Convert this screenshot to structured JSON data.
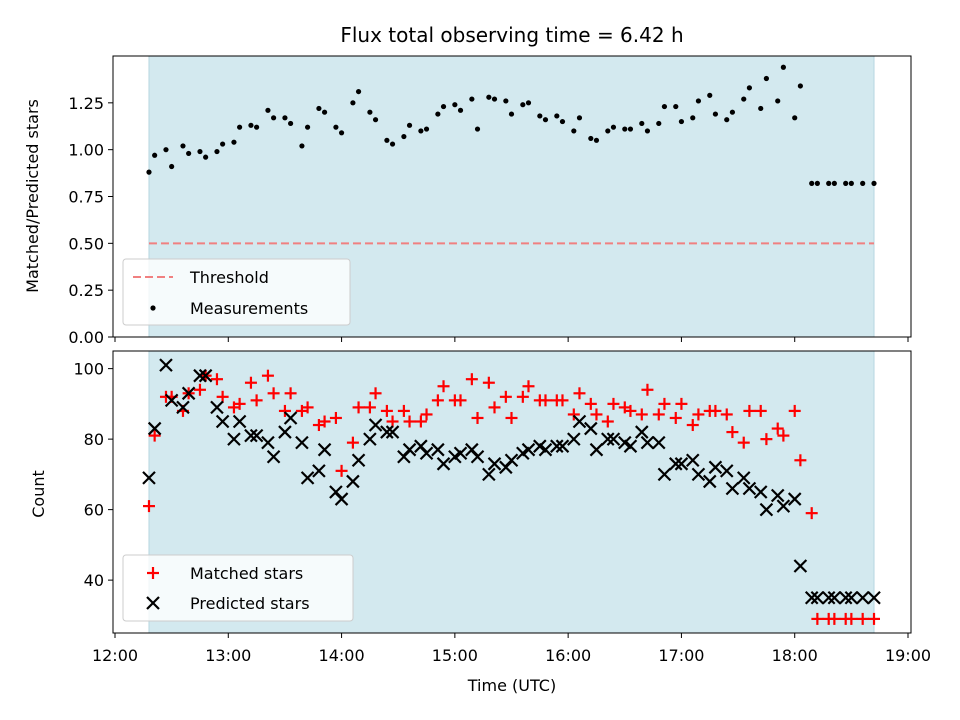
{
  "chart_data": [
    {
      "type": "scatter",
      "title": "Flux total observing time = 6.42 h",
      "xlabel": "",
      "ylabel": "Matched/Predicted stars",
      "xlim": [
        "12:00",
        "19:00"
      ],
      "ylim": [
        0.0,
        1.5
      ],
      "yticks": [
        "0.00",
        "0.25",
        "0.50",
        "0.75",
        "1.00",
        "1.25"
      ],
      "span": {
        "start": "12:18",
        "end": "18:42",
        "color": "#d3e9ef"
      },
      "threshold": {
        "label": "Threshold",
        "value": 0.5,
        "color": "#f08080"
      },
      "legend_position": "lower-left",
      "series": [
        {
          "name": "Measurements",
          "marker": "dot",
          "color": "#000000",
          "x": [
            "12:18",
            "12:21",
            "12:27",
            "12:30",
            "12:36",
            "12:39",
            "12:45",
            "12:48",
            "12:54",
            "12:57",
            "13:03",
            "13:06",
            "13:12",
            "13:15",
            "13:21",
            "13:24",
            "13:30",
            "13:33",
            "13:39",
            "13:42",
            "13:48",
            "13:51",
            "13:57",
            "14:00",
            "14:06",
            "14:09",
            "14:15",
            "14:18",
            "14:24",
            "14:27",
            "14:33",
            "14:36",
            "14:42",
            "14:45",
            "14:51",
            "14:54",
            "15:00",
            "15:03",
            "15:09",
            "15:12",
            "15:18",
            "15:21",
            "15:27",
            "15:30",
            "15:36",
            "15:39",
            "15:45",
            "15:48",
            "15:54",
            "15:57",
            "16:03",
            "16:06",
            "16:12",
            "16:15",
            "16:21",
            "16:24",
            "16:30",
            "16:33",
            "16:39",
            "16:42",
            "16:48",
            "16:51",
            "16:57",
            "17:00",
            "17:06",
            "17:09",
            "17:15",
            "17:18",
            "17:24",
            "17:27",
            "17:33",
            "17:36",
            "17:42",
            "17:45",
            "17:51",
            "17:54",
            "18:00",
            "18:03",
            "18:09",
            "18:12",
            "18:18",
            "18:21",
            "18:27",
            "18:30",
            "18:36",
            "18:42"
          ],
          "y": [
            0.88,
            0.97,
            1.0,
            0.91,
            1.02,
            0.98,
            0.99,
            0.96,
            0.99,
            1.03,
            1.04,
            1.12,
            1.13,
            1.12,
            1.21,
            1.17,
            1.17,
            1.14,
            1.02,
            1.12,
            1.22,
            1.2,
            1.12,
            1.09,
            1.25,
            1.31,
            1.2,
            1.16,
            1.05,
            1.03,
            1.07,
            1.13,
            1.1,
            1.11,
            1.19,
            1.23,
            1.24,
            1.21,
            1.27,
            1.11,
            1.28,
            1.27,
            1.26,
            1.19,
            1.24,
            1.25,
            1.18,
            1.16,
            1.18,
            1.15,
            1.1,
            1.17,
            1.06,
            1.05,
            1.1,
            1.12,
            1.11,
            1.11,
            1.14,
            1.1,
            1.14,
            1.23,
            1.23,
            1.15,
            1.17,
            1.26,
            1.29,
            1.19,
            1.16,
            1.2,
            1.27,
            1.33,
            1.22,
            1.38,
            1.26,
            1.44,
            1.17,
            1.34,
            0.82,
            0.82,
            0.82,
            0.82,
            0.82,
            0.82,
            0.82,
            0.82
          ]
        }
      ]
    },
    {
      "type": "scatter",
      "title": "",
      "xlabel": "Time (UTC)",
      "ylabel": "Count",
      "xlim": [
        "12:00",
        "19:00"
      ],
      "xticks": [
        "12:00",
        "13:00",
        "14:00",
        "15:00",
        "16:00",
        "17:00",
        "18:00",
        "19:00"
      ],
      "ylim": [
        25,
        105
      ],
      "yticks": [
        "40",
        "60",
        "80",
        "100"
      ],
      "span": {
        "start": "12:18",
        "end": "18:42",
        "color": "#d3e9ef"
      },
      "legend_position": "lower-left",
      "series": [
        {
          "name": "Matched stars",
          "marker": "plus",
          "color": "#ff0000",
          "x": [
            "12:18",
            "12:21",
            "12:27",
            "12:30",
            "12:36",
            "12:39",
            "12:45",
            "12:48",
            "12:54",
            "12:57",
            "13:03",
            "13:06",
            "13:12",
            "13:15",
            "13:21",
            "13:24",
            "13:30",
            "13:33",
            "13:39",
            "13:42",
            "13:48",
            "13:51",
            "13:57",
            "14:00",
            "14:06",
            "14:09",
            "14:15",
            "14:18",
            "14:24",
            "14:27",
            "14:33",
            "14:36",
            "14:42",
            "14:45",
            "14:51",
            "14:54",
            "15:00",
            "15:03",
            "15:09",
            "15:12",
            "15:18",
            "15:21",
            "15:27",
            "15:30",
            "15:36",
            "15:39",
            "15:45",
            "15:48",
            "15:54",
            "15:57",
            "16:03",
            "16:06",
            "16:12",
            "16:15",
            "16:21",
            "16:24",
            "16:30",
            "16:33",
            "16:39",
            "16:42",
            "16:48",
            "16:51",
            "16:57",
            "17:00",
            "17:06",
            "17:09",
            "17:15",
            "17:18",
            "17:24",
            "17:27",
            "17:33",
            "17:36",
            "17:42",
            "17:45",
            "17:51",
            "17:54",
            "18:00",
            "18:03",
            "18:09",
            "18:12",
            "18:18",
            "18:21",
            "18:27",
            "18:30",
            "18:36",
            "18:42"
          ],
          "y": [
            61,
            81,
            92,
            92,
            88,
            93,
            94,
            98,
            97,
            92,
            89,
            90,
            96,
            91,
            98,
            93,
            88,
            93,
            88,
            89,
            84,
            85,
            86,
            71,
            79,
            89,
            89,
            93,
            88,
            85,
            88,
            85,
            85,
            87,
            91,
            95,
            91,
            91,
            97,
            86,
            96,
            89,
            92,
            86,
            92,
            95,
            91,
            91,
            91,
            91,
            87,
            93,
            90,
            87,
            85,
            90,
            89,
            88,
            87,
            94,
            87,
            90,
            86,
            90,
            84,
            87,
            88,
            88,
            87,
            82,
            79,
            88,
            88,
            80,
            83,
            81,
            88,
            74,
            59,
            29,
            29,
            29,
            29,
            29,
            29,
            29
          ]
        },
        {
          "name": "Predicted stars",
          "marker": "x",
          "color": "#000000",
          "x": [
            "12:18",
            "12:21",
            "12:27",
            "12:30",
            "12:36",
            "12:39",
            "12:45",
            "12:48",
            "12:54",
            "12:57",
            "13:03",
            "13:06",
            "13:12",
            "13:15",
            "13:21",
            "13:24",
            "13:30",
            "13:33",
            "13:39",
            "13:42",
            "13:48",
            "13:51",
            "13:57",
            "14:00",
            "14:06",
            "14:09",
            "14:15",
            "14:18",
            "14:24",
            "14:27",
            "14:33",
            "14:36",
            "14:42",
            "14:45",
            "14:51",
            "14:54",
            "15:00",
            "15:03",
            "15:09",
            "15:12",
            "15:18",
            "15:21",
            "15:27",
            "15:30",
            "15:36",
            "15:39",
            "15:45",
            "15:48",
            "15:54",
            "15:57",
            "16:03",
            "16:06",
            "16:12",
            "16:15",
            "16:21",
            "16:24",
            "16:30",
            "16:33",
            "16:39",
            "16:42",
            "16:48",
            "16:51",
            "16:57",
            "17:00",
            "17:06",
            "17:09",
            "17:15",
            "17:18",
            "17:24",
            "17:27",
            "17:33",
            "17:36",
            "17:42",
            "17:45",
            "17:51",
            "17:54",
            "18:00",
            "18:03",
            "18:09",
            "18:12",
            "18:18",
            "18:21",
            "18:27",
            "18:30",
            "18:36",
            "18:42"
          ],
          "y": [
            69,
            83,
            101,
            91,
            89,
            93,
            98,
            98,
            89,
            85,
            80,
            85,
            81,
            81,
            79,
            75,
            82,
            86,
            79,
            69,
            71,
            77,
            65,
            63,
            68,
            74,
            80,
            84,
            82,
            82,
            75,
            77,
            78,
            76,
            77,
            73,
            75,
            76,
            77,
            75,
            70,
            73,
            72,
            74,
            76,
            77,
            78,
            77,
            78,
            78,
            80,
            85,
            83,
            77,
            80,
            80,
            79,
            78,
            82,
            79,
            79,
            70,
            73,
            73,
            74,
            70,
            68,
            72,
            71,
            66,
            69,
            66,
            65,
            60,
            64,
            61,
            63,
            44,
            35,
            35,
            35,
            35,
            35,
            35,
            35,
            35
          ]
        }
      ]
    }
  ]
}
